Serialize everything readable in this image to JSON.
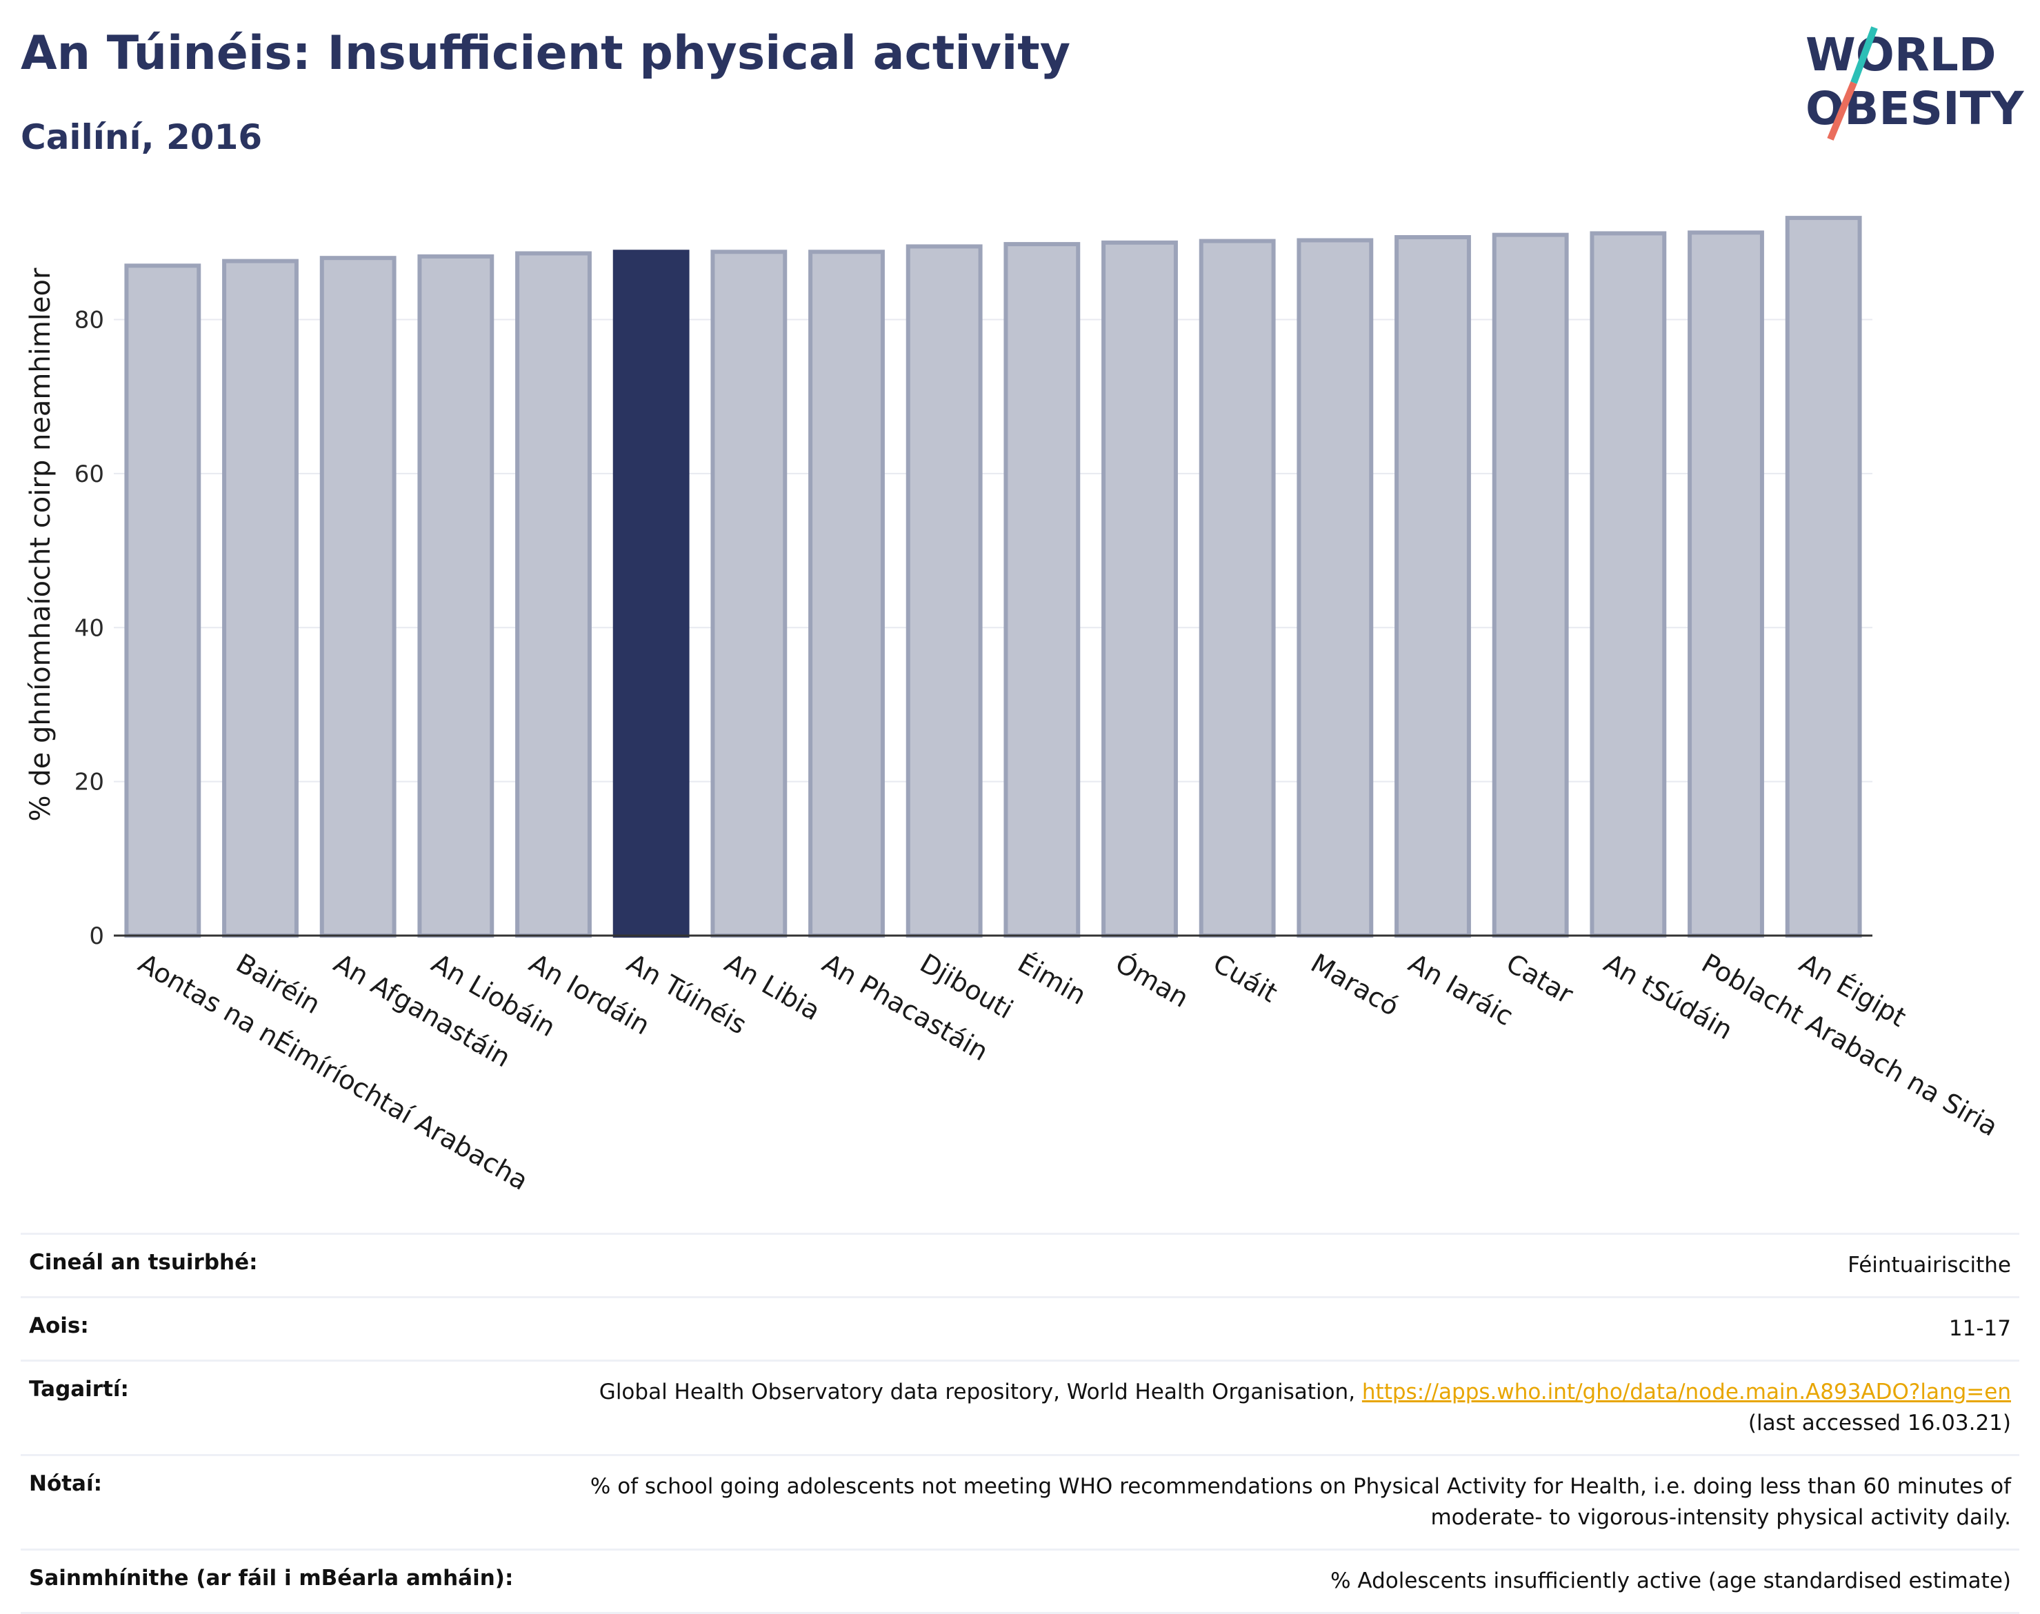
{
  "header": {
    "title": "An Túinéis: Insufficient physical activity",
    "subtitle": "Cailíní, 2016"
  },
  "logo": {
    "line1": "WORLD",
    "line2": "OBESITY"
  },
  "chart_data": {
    "type": "bar",
    "ylabel": "% de ghníomhaíocht coirp neamhimleor",
    "ylim": [
      0,
      95
    ],
    "yticks": [
      0,
      20,
      40,
      60,
      80
    ],
    "grid": true,
    "highlight": "An Túinéis",
    "colors": {
      "bar": "#bfc3d0",
      "bar_edge": "#9ca3b9",
      "highlight": "#2a3460"
    },
    "categories": [
      "Aontas na nÉimíríochtaí Arabacha",
      "Bairéin",
      "An Afganastáin",
      "An Liobáin",
      "An Iordáin",
      "An Túinéis",
      "An Libia",
      "An Phacastáin",
      "Djibouti",
      "Éimin",
      "Óman",
      "Cuáit",
      "Maracó",
      "An Iaráic",
      "Catar",
      "An tSúdáin",
      "Poblacht Arabach na Siria",
      "An Éigipt"
    ],
    "values": [
      87.0,
      87.6,
      88.0,
      88.2,
      88.6,
      88.8,
      88.8,
      88.8,
      89.5,
      89.8,
      90.0,
      90.2,
      90.3,
      90.7,
      91.0,
      91.2,
      91.3,
      93.2
    ]
  },
  "info": {
    "survey_label": "Cineál an tsuirbhé:",
    "survey_value": "Féintuairiscithe",
    "age_label": "Aois:",
    "age_value": "11-17",
    "refs_label": "Tagairtí:",
    "refs_text": "Global Health Observatory data repository, World Health Organisation, ",
    "refs_link": "https://apps.who.int/gho/data/node.main.A893ADO?lang=en",
    "refs_accessed": "(last accessed 16.03.21)",
    "notes_label": "Nótaí:",
    "notes_line1": "% of school going adolescents not meeting WHO recommendations on Physical Activity for Health, i.e. doing less than 60 minutes of",
    "notes_line2": "moderate- to vigorous-intensity physical activity daily.",
    "defs_label": "Sainmhínithe (ar fáil i mBéarla amháin):",
    "defs_value": "% Adolescents insufficiently active (age standardised estimate)"
  }
}
